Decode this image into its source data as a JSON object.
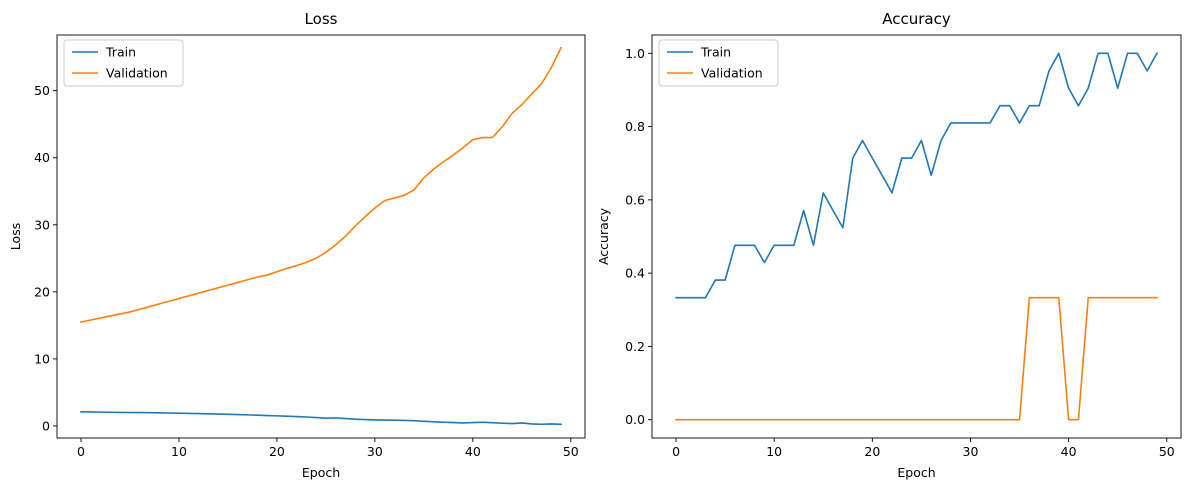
{
  "colors": {
    "train": "#1f77b4",
    "validation": "#ff7f0e"
  },
  "chart_data": [
    {
      "type": "line",
      "title": "Loss",
      "xlabel": "Epoch",
      "ylabel": "Loss",
      "xlim": [
        -2.45,
        51.45
      ],
      "ylim": [
        -1.8,
        58.3
      ],
      "xticks": [
        0,
        10,
        20,
        30,
        40,
        50
      ],
      "yticks": [
        0,
        10,
        20,
        30,
        40,
        50
      ],
      "grid": false,
      "legend": "upper left",
      "x": [
        0,
        1,
        2,
        3,
        4,
        5,
        6,
        7,
        8,
        9,
        10,
        11,
        12,
        13,
        14,
        15,
        16,
        17,
        18,
        19,
        20,
        21,
        22,
        23,
        24,
        25,
        26,
        27,
        28,
        29,
        30,
        31,
        32,
        33,
        34,
        35,
        36,
        37,
        38,
        39,
        40,
        41,
        42,
        43,
        44,
        45,
        46,
        47,
        48,
        49
      ],
      "series": [
        {
          "name": "Train",
          "color": "#1f77b4",
          "values": [
            2.1,
            2.08,
            2.06,
            2.04,
            2.02,
            2.0,
            1.99,
            1.97,
            1.95,
            1.93,
            1.9,
            1.87,
            1.84,
            1.8,
            1.77,
            1.73,
            1.69,
            1.65,
            1.6,
            1.55,
            1.5,
            1.45,
            1.4,
            1.33,
            1.25,
            1.15,
            1.2,
            1.1,
            1.0,
            0.95,
            0.9,
            0.87,
            0.85,
            0.82,
            0.78,
            0.7,
            0.62,
            0.55,
            0.5,
            0.45,
            0.5,
            0.55,
            0.48,
            0.4,
            0.35,
            0.45,
            0.3,
            0.25,
            0.3,
            0.25
          ]
        },
        {
          "name": "Validation",
          "color": "#ff7f0e",
          "values": [
            15.5,
            15.8,
            16.1,
            16.4,
            16.7,
            17.0,
            17.4,
            17.8,
            18.2,
            18.6,
            19.0,
            19.4,
            19.8,
            20.2,
            20.6,
            21.0,
            21.4,
            21.8,
            22.2,
            22.5,
            23.0,
            23.5,
            23.9,
            24.4,
            25.0,
            25.9,
            27.0,
            28.3,
            29.8,
            31.2,
            32.5,
            33.6,
            34.0,
            34.4,
            35.2,
            37.0,
            38.3,
            39.4,
            40.4,
            41.5,
            42.7,
            43.0,
            43.0,
            44.6,
            46.6,
            47.9,
            49.5,
            51.0,
            53.4,
            56.4
          ]
        }
      ]
    },
    {
      "type": "line",
      "title": "Accuracy",
      "xlabel": "Epoch",
      "ylabel": "Accuracy",
      "xlim": [
        -2.45,
        51.45
      ],
      "ylim": [
        -0.05,
        1.05
      ],
      "xticks": [
        0,
        10,
        20,
        30,
        40,
        50
      ],
      "yticks": [
        0.0,
        0.2,
        0.4,
        0.6,
        0.8,
        1.0
      ],
      "ytick_labels": [
        "0.0",
        "0.2",
        "0.4",
        "0.6",
        "0.8",
        "1.0"
      ],
      "grid": false,
      "legend": "upper left",
      "x": [
        0,
        1,
        2,
        3,
        4,
        5,
        6,
        7,
        8,
        9,
        10,
        11,
        12,
        13,
        14,
        15,
        16,
        17,
        18,
        19,
        20,
        21,
        22,
        23,
        24,
        25,
        26,
        27,
        28,
        29,
        30,
        31,
        32,
        33,
        34,
        35,
        36,
        37,
        38,
        39,
        40,
        41,
        42,
        43,
        44,
        45,
        46,
        47,
        48,
        49
      ],
      "series": [
        {
          "name": "Train",
          "color": "#1f77b4",
          "values": [
            0.333,
            0.333,
            0.333,
            0.333,
            0.381,
            0.381,
            0.476,
            0.476,
            0.476,
            0.429,
            0.476,
            0.476,
            0.476,
            0.571,
            0.476,
            0.619,
            0.571,
            0.524,
            0.714,
            0.762,
            0.714,
            0.667,
            0.619,
            0.714,
            0.714,
            0.762,
            0.667,
            0.762,
            0.81,
            0.81,
            0.81,
            0.81,
            0.81,
            0.857,
            0.857,
            0.81,
            0.857,
            0.857,
            0.952,
            1.0,
            0.905,
            0.857,
            0.905,
            1.0,
            1.0,
            0.905,
            1.0,
            1.0,
            0.952,
            1.0
          ]
        },
        {
          "name": "Validation",
          "color": "#ff7f0e",
          "values": [
            0,
            0,
            0,
            0,
            0,
            0,
            0,
            0,
            0,
            0,
            0,
            0,
            0,
            0,
            0,
            0,
            0,
            0,
            0,
            0,
            0,
            0,
            0,
            0,
            0,
            0,
            0,
            0,
            0,
            0,
            0,
            0,
            0,
            0,
            0,
            0,
            0.333,
            0.333,
            0.333,
            0.333,
            0,
            0,
            0.333,
            0.333,
            0.333,
            0.333,
            0.333,
            0.333,
            0.333,
            0.333
          ]
        }
      ]
    }
  ]
}
